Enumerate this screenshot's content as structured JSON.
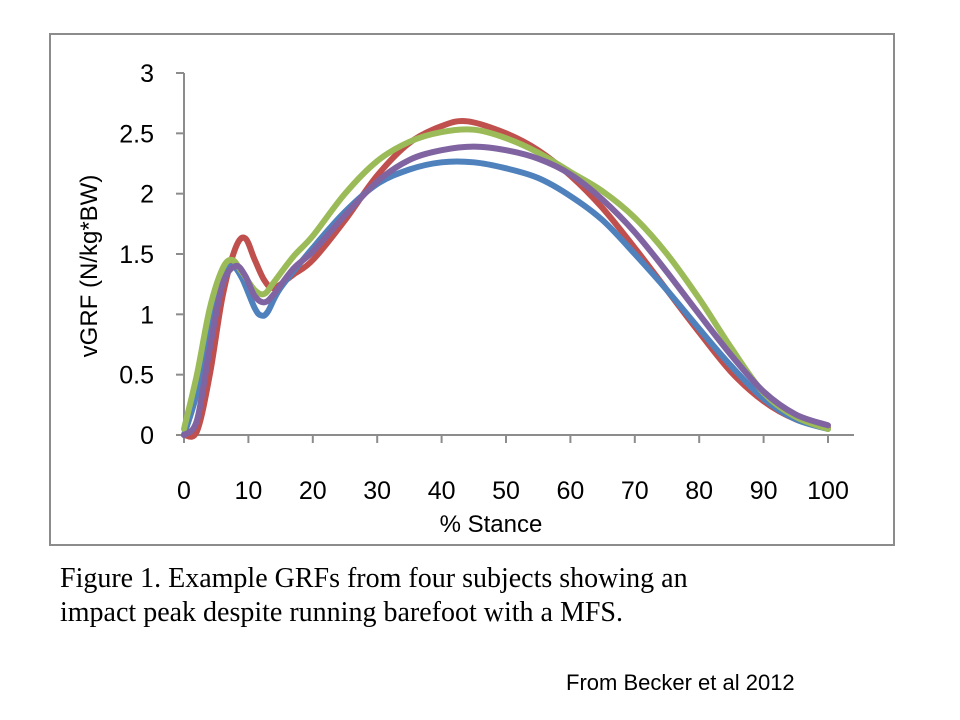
{
  "chart_data": {
    "type": "line",
    "xlabel": "% Stance",
    "ylabel": "vGRF (N/kg*BW)",
    "xlim": [
      0,
      100
    ],
    "ylim": [
      0,
      3
    ],
    "xticks": [
      "0",
      "10",
      "20",
      "30",
      "40",
      "50",
      "60",
      "70",
      "80",
      "90",
      "100"
    ],
    "yticks": [
      "0",
      "0.5",
      "1",
      "1.5",
      "2",
      "2.5",
      "3"
    ],
    "grid": false,
    "legend": "none",
    "series": [
      {
        "color": "#c0504d",
        "x": [
          0,
          2,
          4,
          6,
          8,
          9.5,
          11,
          12.5,
          14,
          17,
          20,
          25,
          30,
          35,
          40,
          44,
          50,
          55,
          60,
          65,
          70,
          75,
          80,
          85,
          90,
          95,
          100
        ],
        "y": [
          0,
          0.03,
          0.5,
          1.15,
          1.55,
          1.63,
          1.45,
          1.28,
          1.22,
          1.33,
          1.45,
          1.78,
          2.15,
          2.42,
          2.56,
          2.6,
          2.5,
          2.36,
          2.15,
          1.88,
          1.55,
          1.2,
          0.85,
          0.52,
          0.28,
          0.13,
          0.06
        ]
      },
      {
        "color": "#4f81bd",
        "x": [
          0,
          2,
          4,
          6,
          7.5,
          9,
          11,
          12,
          13,
          15,
          20,
          25,
          30,
          35,
          40,
          45,
          50,
          55,
          60,
          65,
          70,
          75,
          80,
          85,
          90,
          95,
          100
        ],
        "y": [
          0,
          0.35,
          0.9,
          1.3,
          1.4,
          1.3,
          1.05,
          0.99,
          1.02,
          1.22,
          1.55,
          1.85,
          2.08,
          2.2,
          2.26,
          2.26,
          2.21,
          2.13,
          1.98,
          1.78,
          1.5,
          1.2,
          0.88,
          0.57,
          0.3,
          0.13,
          0.05
        ]
      },
      {
        "color": "#9bbb59",
        "x": [
          0,
          2,
          4,
          6,
          7.5,
          9,
          11,
          12.5,
          14,
          17,
          20,
          25,
          30,
          35,
          40,
          45,
          50,
          55,
          60,
          65,
          70,
          75,
          80,
          85,
          90,
          95,
          100
        ],
        "y": [
          0.05,
          0.5,
          1.05,
          1.38,
          1.45,
          1.35,
          1.2,
          1.17,
          1.27,
          1.48,
          1.65,
          2.0,
          2.27,
          2.43,
          2.51,
          2.53,
          2.46,
          2.34,
          2.18,
          2.02,
          1.8,
          1.5,
          1.13,
          0.72,
          0.35,
          0.15,
          0.05
        ]
      },
      {
        "color": "#8064a2",
        "x": [
          0,
          2,
          4,
          6,
          8,
          9.5,
          11,
          12.5,
          14,
          17,
          20,
          25,
          30,
          35,
          40,
          45,
          50,
          55,
          60,
          65,
          70,
          75,
          80,
          85,
          90,
          95,
          100
        ],
        "y": [
          0,
          0.12,
          0.72,
          1.25,
          1.4,
          1.32,
          1.15,
          1.1,
          1.17,
          1.38,
          1.52,
          1.82,
          2.1,
          2.28,
          2.36,
          2.39,
          2.36,
          2.29,
          2.16,
          1.95,
          1.68,
          1.35,
          1.0,
          0.66,
          0.36,
          0.17,
          0.08
        ]
      }
    ]
  },
  "caption": {
    "line1": "Figure 1.  Example GRFs from four subjects showing an",
    "line2": "impact peak despite running barefoot with a MFS."
  },
  "source_note": "From Becker et al 2012"
}
